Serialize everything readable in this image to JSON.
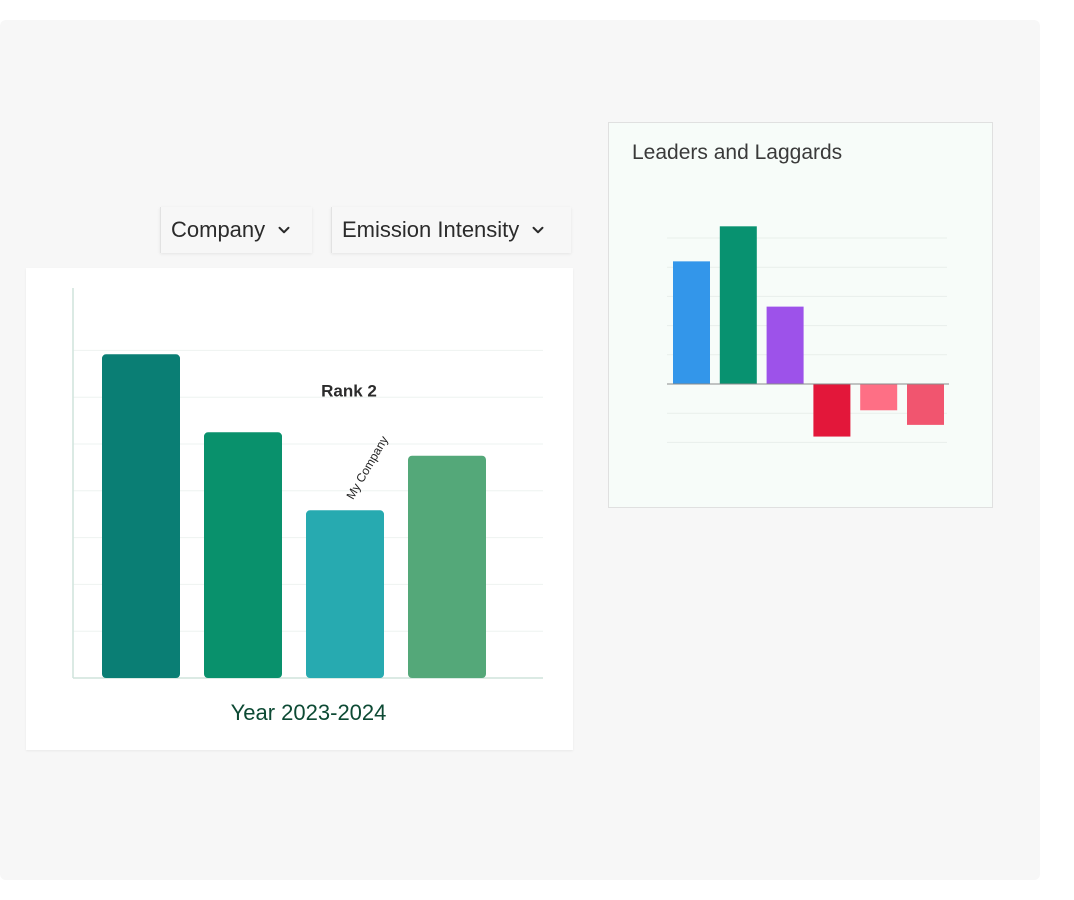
{
  "filters": {
    "company_label": "Company",
    "metric_label": "Emission Intensity"
  },
  "icons": {
    "dropdown": "chevron-down-icon"
  },
  "chart_data": [
    {
      "type": "bar",
      "categories": [
        "",
        "",
        "My Company",
        ""
      ],
      "values": [
        0.83,
        0.63,
        0.43,
        0.57
      ],
      "colors": [
        "#0a7e74",
        "#09916c",
        "#27aab0",
        "#54a879"
      ],
      "annotation": "Rank 2",
      "highlight_label": "My Company",
      "xlabel": "Year 2023-2024",
      "ylim": [
        0,
        1
      ],
      "grid": true
    },
    {
      "type": "bar",
      "title": "Leaders and Laggards",
      "values": [
        4.2,
        5.4,
        2.65,
        -1.8,
        -0.9,
        -1.4
      ],
      "colors": [
        "#3396ea",
        "#089270",
        "#9d52ea",
        "#e3173a",
        "#fe6f85",
        "#f1556f"
      ],
      "ylim": [
        -3,
        6
      ],
      "grid": true
    }
  ]
}
